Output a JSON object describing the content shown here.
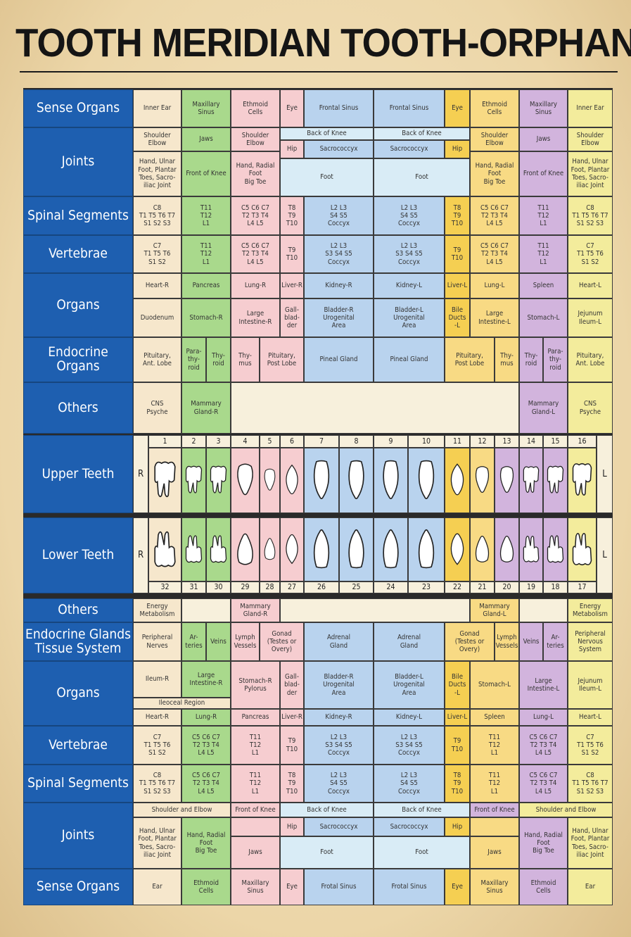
{
  "title": "TOOTH MERIDIAN TOOTH-ORPHAN CHART",
  "colors": {
    "label_blue": "#1e5fb0",
    "peach": "#f6e7cc",
    "green": "#a9d98c",
    "pink": "#f6cdd0",
    "sky": "#b9d3ee",
    "lightblue": "#d9ecf6",
    "yellow": "#f5cf52",
    "gold": "#f8da84",
    "purple": "#d2b4dd",
    "lemon": "#f3ec9c",
    "cream": "#f7f0dc"
  },
  "upper_numbers": [
    "1",
    "2",
    "3",
    "4",
    "5",
    "6",
    "7",
    "8",
    "9",
    "10",
    "11",
    "12",
    "13",
    "14",
    "15",
    "16"
  ],
  "lower_numbers": [
    "32",
    "31",
    "30",
    "29",
    "28",
    "27",
    "26",
    "25",
    "24",
    "23",
    "22",
    "21",
    "20",
    "19",
    "18",
    "17"
  ],
  "R": "R",
  "L": "L",
  "labels": {
    "sense_organs_top": "Sense Organs",
    "joints_top": "Joints",
    "spinal_top": "Spinal Segments",
    "vertebrae_top": "Vertebrae",
    "organs_top": "Organs",
    "endocrine_top": "Endocrine Organs",
    "others_top": "Others",
    "upper_teeth": "Upper Teeth",
    "lower_teeth": "Lower Teeth",
    "others_bottom": "Others",
    "endocrine_bottom": "Endocrine Glands\nTissue System",
    "organs_bottom": "Organs",
    "vertebrae_bottom": "Vertebrae",
    "spinal_bottom": "Spinal Segments",
    "joints_bottom": "Joints",
    "sense_organs_bottom": "Sense Organs"
  },
  "cells": {
    "so_t_1": "Inner Ear",
    "so_t_2": "Maxillary\nSinus",
    "so_t_3": "Ethmoid\nCells",
    "so_t_4": "Eye",
    "so_t_5": "Frontal Sinus",
    "so_t_6": "Frontal Sinus",
    "so_t_7": "Eye",
    "so_t_8": "Ethmoid\nCells",
    "so_t_9": "Maxillary\nSinus",
    "so_t_10": "Inner Ear",
    "j_t_1": "Shoulder\nElbow",
    "j_t_2": "Jaws",
    "j_t_3": "Shoulder\nElbow",
    "j_t_4": "Back of Knee",
    "j_t_5": "Back of Knee",
    "j_t_6": "Shoulder\nElbow",
    "j_t_7": "Jaws",
    "j_t_8": "Shoulder\nElbow",
    "j_t_9": "Hip",
    "j_t_10": "Sacrococcyx",
    "j_t_11": "Sacrococcyx",
    "j_t_12": "Hip",
    "j_t_13": "Hand, Ulnar\nFoot, Plantar\nToes, Sacro-\niliac Joint",
    "j_t_14": "Front of Knee",
    "j_t_15": "Hand, Radial\nFoot\nBig Toe",
    "j_t_16": "Foot",
    "j_t_17": "Foot",
    "j_t_18": "Hand, Radial\nFoot\nBig Toe",
    "j_t_19": "Front of Knee",
    "j_t_20": "Hand, Ulnar\nFoot, Plantar\nToes, Sacro-\niliac Joint",
    "s_t_1": "C8\nT1 T5 T6 T7\nS1 S2 S3",
    "s_t_2": "T11\nT12\nL1",
    "s_t_3": "C5 C6 C7\nT2 T3 T4\nL4 L5",
    "s_t_4": "T8\nT9\nT10",
    "s_t_5": "L2 L3\nS4 S5\nCoccyx",
    "s_t_6": "L2 L3\nS4 S5\nCoccyx",
    "s_t_7": "T8\nT9\nT10",
    "s_t_8": "C5 C6 C7\nT2 T3 T4\nL4 L5",
    "s_t_9": "T11\nT12\nL1",
    "s_t_10": "C8\nT1 T5 T6 T7\nS1 S2 S3",
    "v_t_1": "C7\nT1 T5 T6\nS1 S2",
    "v_t_2": "T11\nT12\nL1",
    "v_t_3": "C5 C6 C7\nT2 T3 T4\nL4 L5",
    "v_t_4": "T9\nT10",
    "v_t_5": "L2 L3\nS3 S4 S5\nCoccyx",
    "v_t_6": "L2 L3\nS3 S4 S5\nCoccyx",
    "v_t_7": "T9\nT10",
    "v_t_8": "C5 C6 C7\nT2 T3 T4\nL4 L5",
    "v_t_9": "T11\nT12\nL1",
    "v_t_10": "C7\nT1 T5 T6\nS1 S2",
    "o_t_1": "Heart-R",
    "o_t_2": "Pancreas",
    "o_t_3": "Lung-R",
    "o_t_4": "Liver-R",
    "o_t_5": "Kidney-R",
    "o_t_6": "Kidney-L",
    "o_t_7": "Liver-L",
    "o_t_8": "Lung-L",
    "o_t_9": "Spleen",
    "o_t_10": "Heart-L",
    "o_t_11": "Duodenum",
    "o_t_12": "Stomach-R",
    "o_t_13": "Large\nIntestine-R",
    "o_t_14": "Gall-\nblad-\nder",
    "o_t_15": "Bladder-R\nUrogenital\nArea",
    "o_t_16": "Bladder-L\nUrogenital\nArea",
    "o_t_17": "Bile\nDucts\n-L",
    "o_t_18": "Large\nIntestine-L",
    "o_t_19": "Stomach-L",
    "o_t_20": "Jejunum\nIleum-L",
    "e_t_1": "Pituitary,\nAnt. Lobe",
    "e_t_2": "Para-\nthy-\nroid",
    "e_t_3": "Thy-\nroid",
    "e_t_4": "Thy-\nmus",
    "e_t_5": "Pituitary,\nPost Lobe",
    "e_t_6": "Pineal Gland",
    "e_t_7": "Pineal Gland",
    "e_t_8": "Pituitary,\nPost Lobe",
    "e_t_9": "Thy-\nmus",
    "e_t_10": "Thy-\nroid",
    "e_t_11": "Para-\nthy-\nroid",
    "e_t_12": "Pituitary,\nAnt. Lobe",
    "ot_t_1": "CNS\nPsyche",
    "ot_t_2": "Mammary\nGland-R",
    "ot_t_3": "Mammary\nGland-L",
    "ot_t_4": "CNS\nPsyche",
    "ot_b_1": "Energy\nMetabolism",
    "ot_b_2": "Mammary\nGland-R",
    "ot_b_3": "Mammary\nGland-L",
    "ot_b_4": "Energy\nMetabolism",
    "e_b_1": "Peripheral\nNerves",
    "e_b_2": "Ar-\nteries",
    "e_b_3": "Veins",
    "e_b_4": "Lymph\nVessels",
    "e_b_5": "Gonad\n(Testes or\nOvery)",
    "e_b_6": "Adrenal\nGland",
    "e_b_7": "Adrenal\nGland",
    "e_b_8": "Gonad\n(Testes or\nOvery)",
    "e_b_9": "Lymph\nVessels",
    "e_b_10": "Veins",
    "e_b_11": "Ar-\nteries",
    "e_b_12": "Peripheral\nNervous\nSystem",
    "o_b_1": "Ileum-R",
    "o_b_2": "Large\nIntestine-R",
    "o_b_3": "Stomach-R\nPylorus",
    "o_b_4": "Gall-\nblad-\nder",
    "o_b_5": "Bladder-R\nUrogenital\nArea",
    "o_b_6": "Bladder-L\nUrogenital\nArea",
    "o_b_7": "Bile\nDucts\n-L",
    "o_b_8": "Stomach-L",
    "o_b_9": "Large\nIntestine-L",
    "o_b_10": "Jejunum\nIleum-L",
    "o_b_11": "Ileoceal Region",
    "o_b_12": "Heart-R",
    "o_b_13": "Lung-R",
    "o_b_14": "Pancreas",
    "o_b_15": "Liver-R",
    "o_b_16": "Kidney-R",
    "o_b_17": "Kidney-L",
    "o_b_18": "Liver-L",
    "o_b_19": "Spleen",
    "o_b_20": "Lung-L",
    "o_b_21": "Heart-L",
    "v_b_1": "C7\nT1 T5 T6\nS1 S2",
    "v_b_2": "C5 C6 C7\nT2 T3 T4\nL4 L5",
    "v_b_3": "T11\nT12\nL1",
    "v_b_4": "T9\nT10",
    "v_b_5": "L2 L3\nS3 S4 S5\nCoccyx",
    "v_b_6": "L2 L3\nS3 S4 S5\nCoccyx",
    "v_b_7": "T9\nT10",
    "v_b_8": "T11\nT12\nL1",
    "v_b_9": "C5 C6 C7\nT2 T3 T4\nL4 L5",
    "v_b_10": "C7\nT1 T5 T6\nS1 S2",
    "s_b_1": "C8\nT1 T5 T6 T7\nS1 S2 S3",
    "s_b_2": "C5 C6 C7\nT2 T3 T4\nL4 L5",
    "s_b_3": "T11\nT12\nL1",
    "s_b_4": "T8\nT9\nT10",
    "s_b_5": "L2 L3\nS4 S5\nCoccyx",
    "s_b_6": "L2 L3\nS4 S5\nCoccyx",
    "s_b_7": "T8\nT9\nT10",
    "s_b_8": "T11\nT12\nL1",
    "s_b_9": "C5 C6 C7\nT2 T3 T4\nL4 L5",
    "s_b_10": "C8\nT1 T5 T6 T7\nS1 S2 S3",
    "j_b_1": "Shoulder and Elbow",
    "j_b_2": "Front of Knee",
    "j_b_3": "Back of Knee",
    "j_b_4": "Back of Knee",
    "j_b_5": "Front of Knee",
    "j_b_6": "Shoulder and Elbow",
    "j_b_7": "Hip",
    "j_b_8": "Sacrococcyx",
    "j_b_9": "Sacrococcyx",
    "j_b_10": "Hip",
    "j_b_11": "Hand, Ulnar\nFoot, Plantar\nToes, Sacro-\niliac Joint",
    "j_b_12": "Hand, Radial\nFoot\nBig Toe",
    "j_b_13": "Jaws",
    "j_b_14": "Foot",
    "j_b_15": "Foot",
    "j_b_16": "Jaws",
    "j_b_17": "Hand, Radial\nFoot\nBig Toe",
    "j_b_18": "Hand, Ulnar\nFoot, Plantar\nToes, Sacro-\niliac Joint",
    "so_b_1": "Ear",
    "so_b_2": "Ethmoid\nCells",
    "so_b_3": "Maxillary\nSinus",
    "so_b_4": "Eye",
    "so_b_5": "Frotal Sinus",
    "so_b_6": "Frotal Sinus",
    "so_b_7": "Eye",
    "so_b_8": "Maxillary\nSinus",
    "so_b_9": "Ethmoid\nCells",
    "so_b_10": "Ear"
  }
}
